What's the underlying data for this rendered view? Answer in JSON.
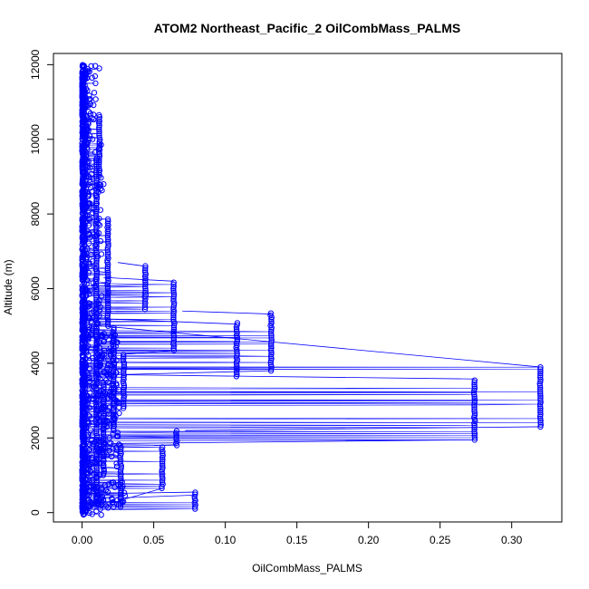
{
  "chart_data": {
    "type": "scatter",
    "title": "ATOM2 Northeast_Pacific_2 OilCombMass_PALMS",
    "xlabel": "OilCombMass_PALMS",
    "ylabel": "Altitude (m)",
    "xlim": [
      -0.02,
      0.335
    ],
    "ylim": [
      -250,
      12300
    ],
    "xticks": [
      0.0,
      0.05,
      0.1,
      0.15,
      0.2,
      0.25,
      0.3
    ],
    "xtick_labels": [
      "0.00",
      "0.05",
      "0.10",
      "0.15",
      "0.20",
      "0.25",
      "0.30"
    ],
    "yticks": [
      0,
      2000,
      4000,
      6000,
      8000,
      10000,
      12000
    ],
    "ytick_labels": [
      "0",
      "2000",
      "4000",
      "6000",
      "8000",
      "10000",
      "12000"
    ],
    "grid": false,
    "legend": "none",
    "marker": "open-circle",
    "connected_by_lines": true,
    "series_color": "#0000ff",
    "columns": [
      {
        "x": 0.32,
        "y0": 2300,
        "y1": 3900
      },
      {
        "x": 0.274,
        "y0": 1950,
        "y1": 3550
      },
      {
        "x": 0.132,
        "y0": 3800,
        "y1": 5350
      },
      {
        "x": 0.108,
        "y0": 3650,
        "y1": 5100
      },
      {
        "x": 0.079,
        "y0": 100,
        "y1": 550
      },
      {
        "x": 0.066,
        "y0": 1800,
        "y1": 2200
      },
      {
        "x": 0.064,
        "y0": 4350,
        "y1": 6200
      },
      {
        "x": 0.056,
        "y0": 650,
        "y1": 1800
      },
      {
        "x": 0.044,
        "y0": 5450,
        "y1": 6650
      },
      {
        "x": 0.029,
        "y0": 2800,
        "y1": 4250
      },
      {
        "x": 0.027,
        "y0": 150,
        "y1": 1850
      },
      {
        "x": 0.022,
        "y0": 2200,
        "y1": 5000
      },
      {
        "x": 0.018,
        "y0": 5000,
        "y1": 7900
      },
      {
        "x": 0.015,
        "y0": 1000,
        "y1": 3500
      },
      {
        "x": 0.012,
        "y0": 9000,
        "y1": 10700
      },
      {
        "x": 0.01,
        "y0": 200,
        "y1": 9500
      }
    ],
    "connectors": [
      [
        [
          0.0,
          5050
        ],
        [
          0.32,
          3900
        ]
      ],
      [
        [
          0.01,
          3700
        ],
        [
          0.274,
          3580
        ]
      ],
      [
        [
          0.02,
          1850
        ],
        [
          0.274,
          1950
        ]
      ],
      [
        [
          0.072,
          2200
        ],
        [
          0.32,
          2300
        ]
      ],
      [
        [
          0.07,
          5400
        ],
        [
          0.132,
          5320
        ]
      ],
      [
        [
          0.01,
          5200
        ],
        [
          0.108,
          5050
        ]
      ],
      [
        [
          0.05,
          1800
        ],
        [
          0.066,
          1820
        ]
      ],
      [
        [
          0.03,
          4250
        ],
        [
          0.064,
          4350
        ]
      ],
      [
        [
          0.025,
          6700
        ],
        [
          0.044,
          6600
        ]
      ],
      [
        [
          0.015,
          6300
        ],
        [
          0.064,
          6200
        ]
      ],
      [
        [
          0.03,
          3700
        ],
        [
          0.132,
          3800
        ]
      ],
      [
        [
          0.02,
          250
        ],
        [
          0.056,
          650
        ]
      ],
      [
        [
          0.0,
          500
        ],
        [
          0.079,
          550
        ]
      ],
      [
        [
          0.03,
          400
        ],
        [
          0.079,
          470
        ]
      ],
      [
        [
          0.005,
          11850
        ],
        [
          0.012,
          11900
        ]
      ],
      [
        [
          0.003,
          8800
        ],
        [
          0.012,
          8780
        ]
      ]
    ],
    "isolated_points": [
      {
        "x": 0.012,
        "y": 11900
      },
      {
        "x": 0.015,
        "y": 8800
      },
      {
        "x": 0.012,
        "y": 8800
      },
      {
        "x": 0.007,
        "y": 11650
      },
      {
        "x": 0.024,
        "y": 3750
      },
      {
        "x": 0.024,
        "y": 3000
      }
    ]
  }
}
